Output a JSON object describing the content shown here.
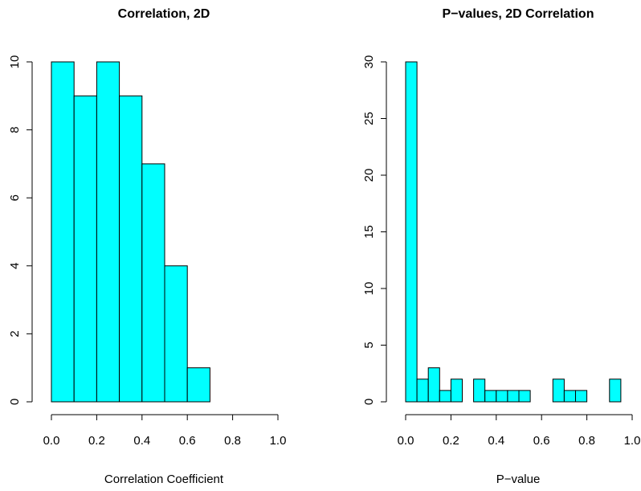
{
  "chart_data": [
    {
      "type": "bar",
      "title": "Correlation, 2D",
      "xlabel": "Correlation Coefficient",
      "ylabel": "",
      "bar_color": "#00FFFF",
      "bin_edges": [
        0.0,
        0.1,
        0.2,
        0.3,
        0.4,
        0.5,
        0.6,
        0.7,
        0.8,
        0.9,
        1.0
      ],
      "values": [
        10,
        9,
        10,
        9,
        7,
        4,
        1,
        0,
        0,
        0
      ],
      "xlim": [
        0,
        1
      ],
      "ylim": [
        0,
        10
      ],
      "x_ticks": [
        0.0,
        0.2,
        0.4,
        0.6,
        0.8,
        1.0
      ],
      "x_tick_labels": [
        "0.0",
        "0.2",
        "0.4",
        "0.6",
        "0.8",
        "1.0"
      ],
      "y_ticks": [
        0,
        2,
        4,
        6,
        8,
        10
      ],
      "y_tick_labels": [
        "0",
        "2",
        "4",
        "6",
        "8",
        "10"
      ],
      "grid": false
    },
    {
      "type": "bar",
      "title": "P−values, 2D Correlation",
      "xlabel": "P−value",
      "ylabel": "",
      "bar_color": "#00FFFF",
      "bin_edges": [
        0.0,
        0.05,
        0.1,
        0.15,
        0.2,
        0.25,
        0.3,
        0.35,
        0.4,
        0.45,
        0.5,
        0.55,
        0.6,
        0.65,
        0.7,
        0.75,
        0.8,
        0.85,
        0.9,
        0.95,
        1.0
      ],
      "values": [
        30,
        2,
        3,
        1,
        2,
        0,
        2,
        1,
        1,
        1,
        1,
        0,
        0,
        2,
        1,
        1,
        0,
        0,
        2,
        0
      ],
      "xlim": [
        0,
        1
      ],
      "ylim": [
        0,
        30
      ],
      "x_ticks": [
        0.0,
        0.2,
        0.4,
        0.6,
        0.8,
        1.0
      ],
      "x_tick_labels": [
        "0.0",
        "0.2",
        "0.4",
        "0.6",
        "0.8",
        "1.0"
      ],
      "y_ticks": [
        0,
        5,
        10,
        15,
        20,
        25,
        30
      ],
      "y_tick_labels": [
        "0",
        "5",
        "10",
        "15",
        "20",
        "25",
        "30"
      ],
      "grid": false
    }
  ]
}
